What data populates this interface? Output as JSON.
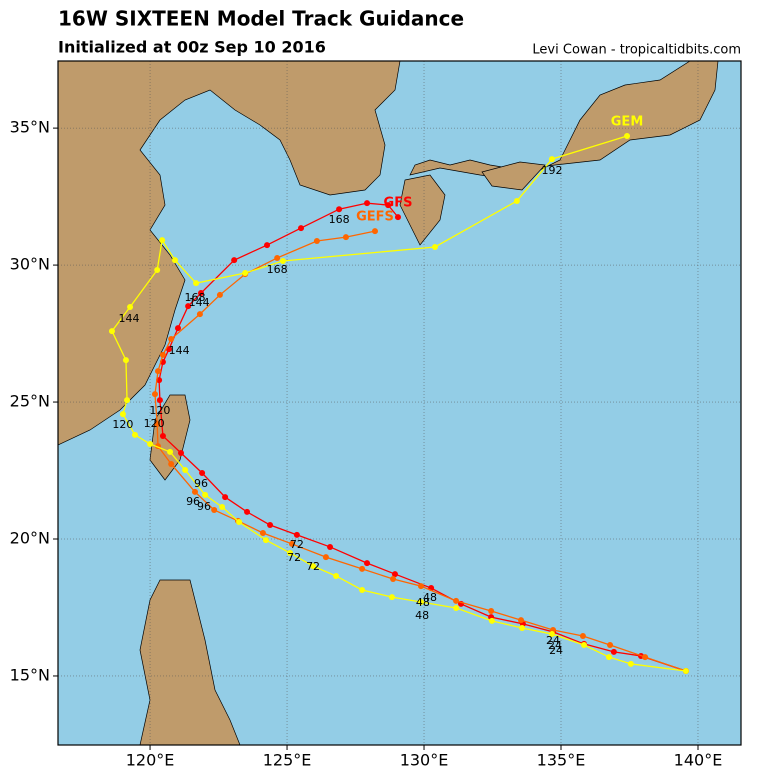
{
  "chart_data": {
    "type": "track",
    "title": "16W SIXTEEN Model Track Guidance",
    "subtitle": "Initialized at 00z Sep 10 2016",
    "credit": "Levi Cowan - tropicaltidbits.com",
    "xlim": [
      116.64,
      141.57
    ],
    "ylim": [
      12.48,
      37.45
    ],
    "xticks": [
      {
        "value": 120,
        "label": "120°E"
      },
      {
        "value": 125,
        "label": "125°E"
      },
      {
        "value": 130,
        "label": "130°E"
      },
      {
        "value": 135,
        "label": "135°E"
      },
      {
        "value": 140,
        "label": "140°E"
      }
    ],
    "yticks": [
      {
        "value": 15,
        "label": "15°N"
      },
      {
        "value": 20,
        "label": "20°N"
      },
      {
        "value": 25,
        "label": "25°N"
      },
      {
        "value": 30,
        "label": "30°N"
      },
      {
        "value": 35,
        "label": "35°N"
      }
    ],
    "grid": true,
    "series": [
      {
        "name": "GFS",
        "color": "#ff0000",
        "x": [
          139.56,
          137.92,
          136.93,
          135.84,
          134.71,
          133.61,
          132.45,
          131.35,
          130.26,
          128.94,
          127.92,
          126.57,
          125.36,
          124.38,
          123.54,
          122.74,
          121.9,
          121.13,
          120.47,
          120.36,
          120.33,
          120.47,
          120.69,
          121.02,
          121.39,
          121.86,
          123.07,
          124.27,
          125.51,
          126.9,
          127.92,
          128.69,
          129.05
        ],
        "values": [
          15.18,
          15.73,
          15.88,
          16.17,
          16.61,
          16.9,
          17.15,
          17.63,
          18.21,
          18.72,
          19.12,
          19.71,
          20.15,
          20.51,
          20.99,
          21.53,
          22.41,
          23.14,
          23.76,
          25.07,
          25.8,
          26.46,
          26.93,
          27.7,
          28.5,
          28.98,
          30.18,
          30.73,
          31.35,
          32.04,
          32.26,
          32.19,
          31.75
        ]
      },
      {
        "name": "GEFS",
        "color": "#ff6600",
        "x": [
          139.56,
          138.07,
          136.79,
          135.8,
          134.71,
          133.54,
          132.45,
          131.17,
          129.89,
          128.87,
          127.74,
          126.42,
          125.18,
          124.12,
          123.21,
          122.34,
          121.64,
          120.77,
          120.29,
          120.26,
          120.18,
          120.29,
          120.47,
          120.77,
          121.82,
          122.55,
          123.47,
          124.64,
          126.09,
          127.15,
          128.21
        ],
        "values": [
          15.18,
          15.69,
          16.13,
          16.46,
          16.68,
          17.04,
          17.37,
          17.74,
          18.28,
          18.54,
          18.91,
          19.34,
          19.82,
          20.22,
          20.66,
          21.06,
          21.72,
          22.74,
          23.39,
          24.2,
          25.29,
          26.13,
          26.72,
          27.3,
          28.21,
          28.91,
          29.67,
          30.26,
          30.88,
          31.02,
          31.24
        ]
      },
      {
        "name": "GEM",
        "color": "#ffff00",
        "x": [
          139.56,
          137.55,
          136.75,
          135.84,
          134.67,
          133.58,
          132.48,
          131.17,
          129.89,
          128.83,
          127.74,
          126.79,
          125.95,
          125.11,
          124.23,
          123.25,
          122.63,
          122.01,
          121.28,
          120.73,
          120.0,
          119.45,
          119.01,
          119.16,
          119.12,
          118.61,
          119.27,
          120.26,
          120.44,
          120.91,
          121.68,
          123.47,
          124.85,
          130.4,
          133.39,
          134.67,
          137.41
        ],
        "values": [
          15.18,
          15.44,
          15.69,
          16.13,
          16.53,
          16.75,
          17.01,
          17.48,
          17.7,
          17.88,
          18.14,
          18.65,
          19.01,
          19.49,
          19.96,
          20.62,
          21.17,
          21.61,
          22.52,
          23.18,
          23.47,
          23.8,
          24.56,
          25.07,
          26.53,
          27.59,
          28.47,
          29.82,
          30.91,
          30.18,
          29.34,
          29.71,
          30.15,
          30.66,
          32.34,
          33.87,
          34.71
        ]
      }
    ],
    "annotations": [
      {
        "text": "192",
        "x": 134.67,
        "y": 33.43
      },
      {
        "text": "168",
        "x": 126.9,
        "y": 31.64
      },
      {
        "text": "168",
        "x": 124.64,
        "y": 29.82
      },
      {
        "text": "168",
        "x": 121.64,
        "y": 28.8
      },
      {
        "text": "144",
        "x": 121.79,
        "y": 28.61
      },
      {
        "text": "144",
        "x": 119.23,
        "y": 28.03
      },
      {
        "text": "144",
        "x": 121.06,
        "y": 26.86
      },
      {
        "text": "120",
        "x": 120.36,
        "y": 24.67
      },
      {
        "text": "120",
        "x": 120.15,
        "y": 24.2
      },
      {
        "text": "120",
        "x": 119.01,
        "y": 24.16
      },
      {
        "text": "96",
        "x": 121.86,
        "y": 22.01
      },
      {
        "text": "96",
        "x": 121.57,
        "y": 21.35
      },
      {
        "text": "96",
        "x": 121.97,
        "y": 21.17
      },
      {
        "text": "72",
        "x": 125.36,
        "y": 19.78
      },
      {
        "text": "72",
        "x": 125.26,
        "y": 19.31
      },
      {
        "text": "72",
        "x": 125.95,
        "y": 18.98
      },
      {
        "text": "48",
        "x": 130.22,
        "y": 17.85
      },
      {
        "text": "48",
        "x": 129.96,
        "y": 17.66
      },
      {
        "text": "48",
        "x": 129.93,
        "y": 17.19
      },
      {
        "text": "24",
        "x": 134.71,
        "y": 16.28
      },
      {
        "text": "24",
        "x": 134.78,
        "y": 16.09
      },
      {
        "text": "24",
        "x": 134.82,
        "y": 15.91
      }
    ]
  }
}
